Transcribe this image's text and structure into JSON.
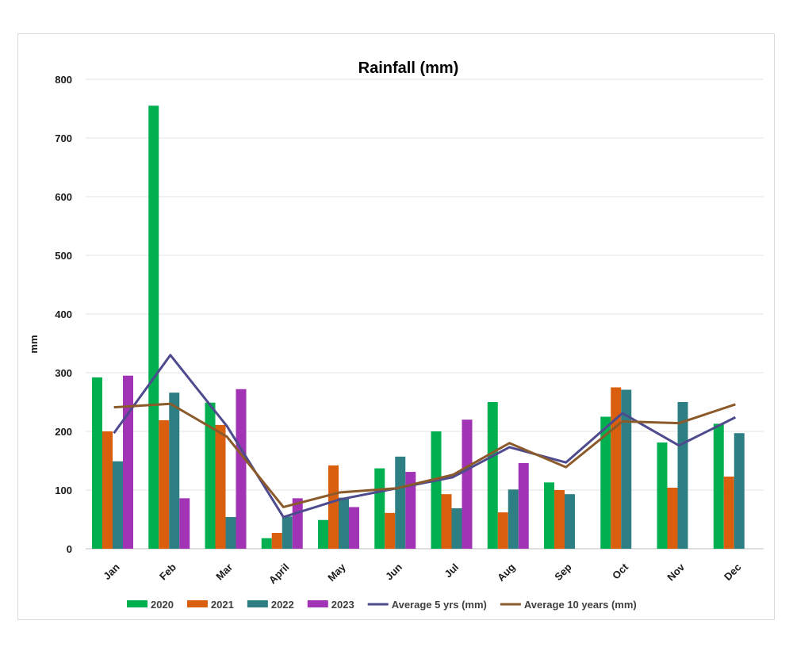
{
  "chart_data": {
    "type": "bar",
    "title": "Rainfall (mm)",
    "xlabel": "",
    "ylabel": "mm",
    "ylim": [
      0,
      800
    ],
    "yticks": [
      0,
      100,
      200,
      300,
      400,
      500,
      600,
      700,
      800
    ],
    "grid": true,
    "legend_position": "bottom",
    "categories": [
      "Jan",
      "Feb",
      "Mar",
      "April",
      "May",
      "Jun",
      "Jul",
      "Aug",
      "Sep",
      "Oct",
      "Nov",
      "Dec"
    ],
    "series": [
      {
        "name": "2020",
        "kind": "bar",
        "color": "#00b050",
        "values": [
          292,
          755,
          249,
          18,
          49,
          137,
          200,
          250,
          113,
          225,
          181,
          213
        ]
      },
      {
        "name": "2021",
        "kind": "bar",
        "color": "#d95f0e",
        "values": [
          200,
          219,
          211,
          27,
          142,
          61,
          93,
          62,
          100,
          275,
          104,
          123
        ]
      },
      {
        "name": "2022",
        "kind": "bar",
        "color": "#2e7f84",
        "values": [
          149,
          266,
          54,
          55,
          87,
          157,
          69,
          101,
          93,
          271,
          250,
          197
        ]
      },
      {
        "name": "2023",
        "kind": "bar",
        "color": "#a034b5",
        "values": [
          295,
          86,
          272,
          86,
          71,
          131,
          220,
          146,
          null,
          null,
          null,
          null
        ]
      },
      {
        "name": "Average 5 yrs (mm)",
        "kind": "line",
        "color": "#4e4a8e",
        "values": [
          197,
          330,
          209,
          54,
          84,
          103,
          122,
          173,
          147,
          231,
          176,
          224
        ]
      },
      {
        "name": "Average 10 years (mm)",
        "kind": "line",
        "color": "#8b5a2b",
        "values": [
          241,
          247,
          191,
          71,
          96,
          103,
          126,
          180,
          139,
          217,
          214,
          246
        ]
      }
    ]
  }
}
